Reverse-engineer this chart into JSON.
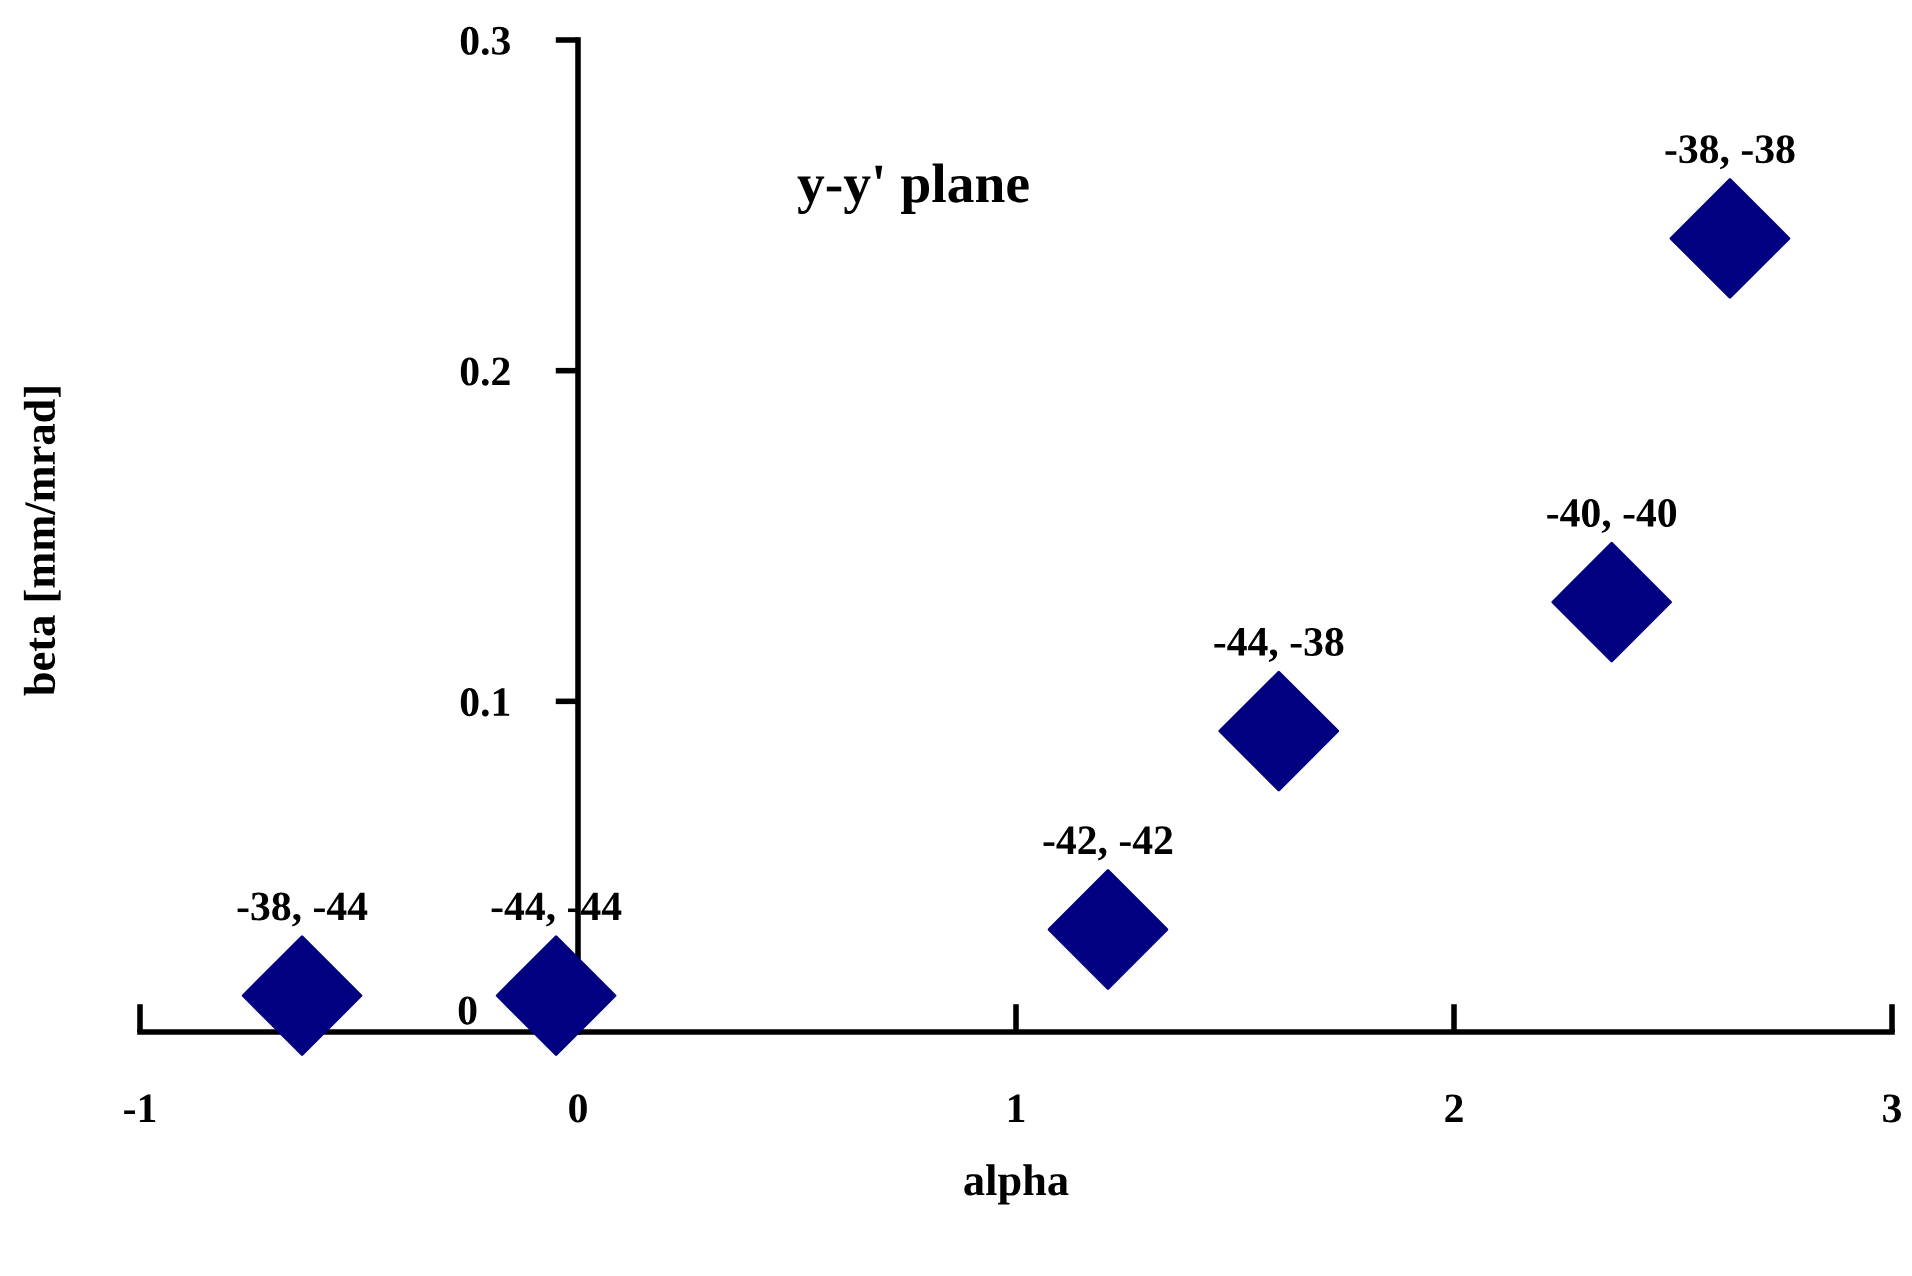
{
  "chart_data": {
    "type": "scatter",
    "title": "y-y' plane",
    "xlabel": "alpha",
    "ylabel": "beta [mm/mrad]",
    "x": [
      -0.63,
      -0.05,
      1.21,
      1.6,
      2.36,
      2.63
    ],
    "series": [
      {
        "color": "#000080",
        "values": [
          0.011,
          0.011,
          0.031,
          0.091,
          0.13,
          0.24
        ]
      }
    ],
    "value_labels": [
      "-38, -44",
      "-44, -44",
      "-42, -42",
      "-44, -38",
      "-40, -40",
      "-38, -38"
    ],
    "xlim": [
      -1,
      3
    ],
    "ylim": [
      0,
      0.3
    ],
    "xticks": [
      -1,
      0,
      1,
      2,
      3
    ],
    "yticks": [
      0,
      0.1,
      0.2,
      0.3
    ],
    "marker": "diamond",
    "grid": false
  }
}
